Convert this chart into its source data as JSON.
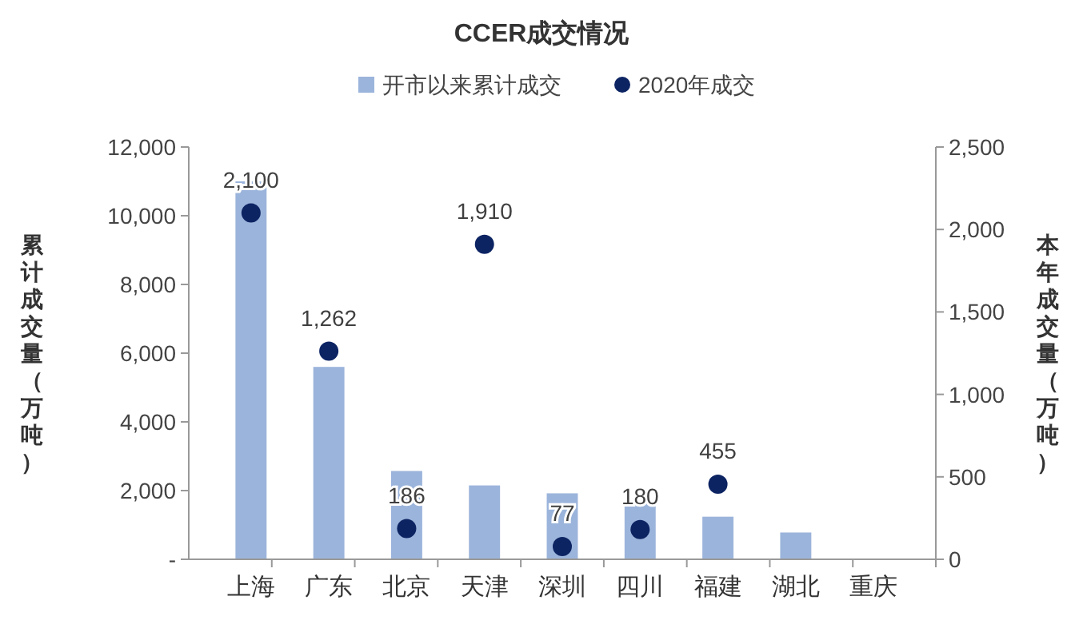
{
  "chart_data": {
    "type": "bar",
    "title": "CCER成交情况",
    "categories": [
      "上海",
      "广东",
      "北京",
      "天津",
      "深圳",
      "四川",
      "福建",
      "湖北",
      "重庆"
    ],
    "ylabel": "累计成交量（万吨）",
    "y2label": "本年成交量（万吨）",
    "legend": "top",
    "grid": false,
    "ylim": [
      0,
      12000
    ],
    "yticks": [
      {
        "value": 0,
        "label": "-"
      },
      {
        "value": 2000,
        "label": "2,000"
      },
      {
        "value": 4000,
        "label": "4,000"
      },
      {
        "value": 6000,
        "label": "6,000"
      },
      {
        "value": 8000,
        "label": "8,000"
      },
      {
        "value": 10000,
        "label": "10,000"
      },
      {
        "value": 12000,
        "label": "12,000"
      }
    ],
    "y2lim": [
      0,
      2500
    ],
    "y2ticks": [
      0,
      {
        "value": 500,
        "label": "500"
      },
      {
        "value": 1000,
        "label": "1,000"
      },
      {
        "value": 1500,
        "label": "1,500"
      },
      {
        "value": 2000,
        "label": "2,000"
      },
      {
        "value": 2500,
        "label": "2,500"
      }
    ],
    "series": [
      {
        "name": "开市以来累计成交",
        "color": "#9bb4db",
        "values": [
          11000,
          5600,
          2570,
          2150,
          1920,
          1630,
          1240,
          780,
          0
        ]
      },
      {
        "name": "2020年成交",
        "type": "scatter",
        "axis": "y2",
        "marker": "circle",
        "color": "#0d2463",
        "values": [
          2100,
          1262,
          186,
          1910,
          77,
          180,
          455,
          null,
          null
        ],
        "value_labels": [
          "2,100",
          "1,262",
          "186",
          "1,910",
          "77",
          "180",
          "455",
          null,
          null
        ]
      }
    ]
  }
}
